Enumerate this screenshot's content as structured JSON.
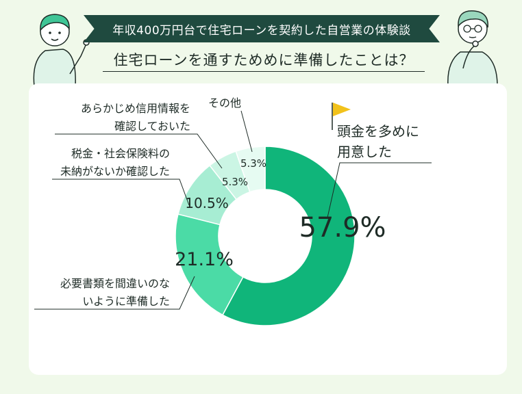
{
  "header": {
    "banner": "年収400万円台で住宅ローンを契約した自営業の体験談",
    "question": "住宅ローンを通すためめに準備したことは？"
  },
  "chart_data": {
    "type": "pie",
    "donut": true,
    "series": [
      {
        "label_lines": [
          "頭金を多めに",
          "用意した"
        ],
        "value": 57.9,
        "display": "57.9%",
        "color": "#10b57a"
      },
      {
        "label_lines": [
          "必要書類を間違いのな",
          "いように準備した"
        ],
        "value": 21.1,
        "display": "21.1%",
        "color": "#4bdba6"
      },
      {
        "label_lines": [
          "税金・社会保険料の",
          "未納がないか確認した"
        ],
        "value": 10.5,
        "display": "10.5%",
        "color": "#a7edd3"
      },
      {
        "label_lines": [
          "あらかじめ信用情報を",
          "確認しておいた"
        ],
        "value": 5.3,
        "display": "5.3%",
        "color": "#cbf5e4"
      },
      {
        "label_lines": [
          "その他"
        ],
        "value": 5.3,
        "display": "5.3%",
        "color": "#e6fbf2"
      }
    ]
  }
}
